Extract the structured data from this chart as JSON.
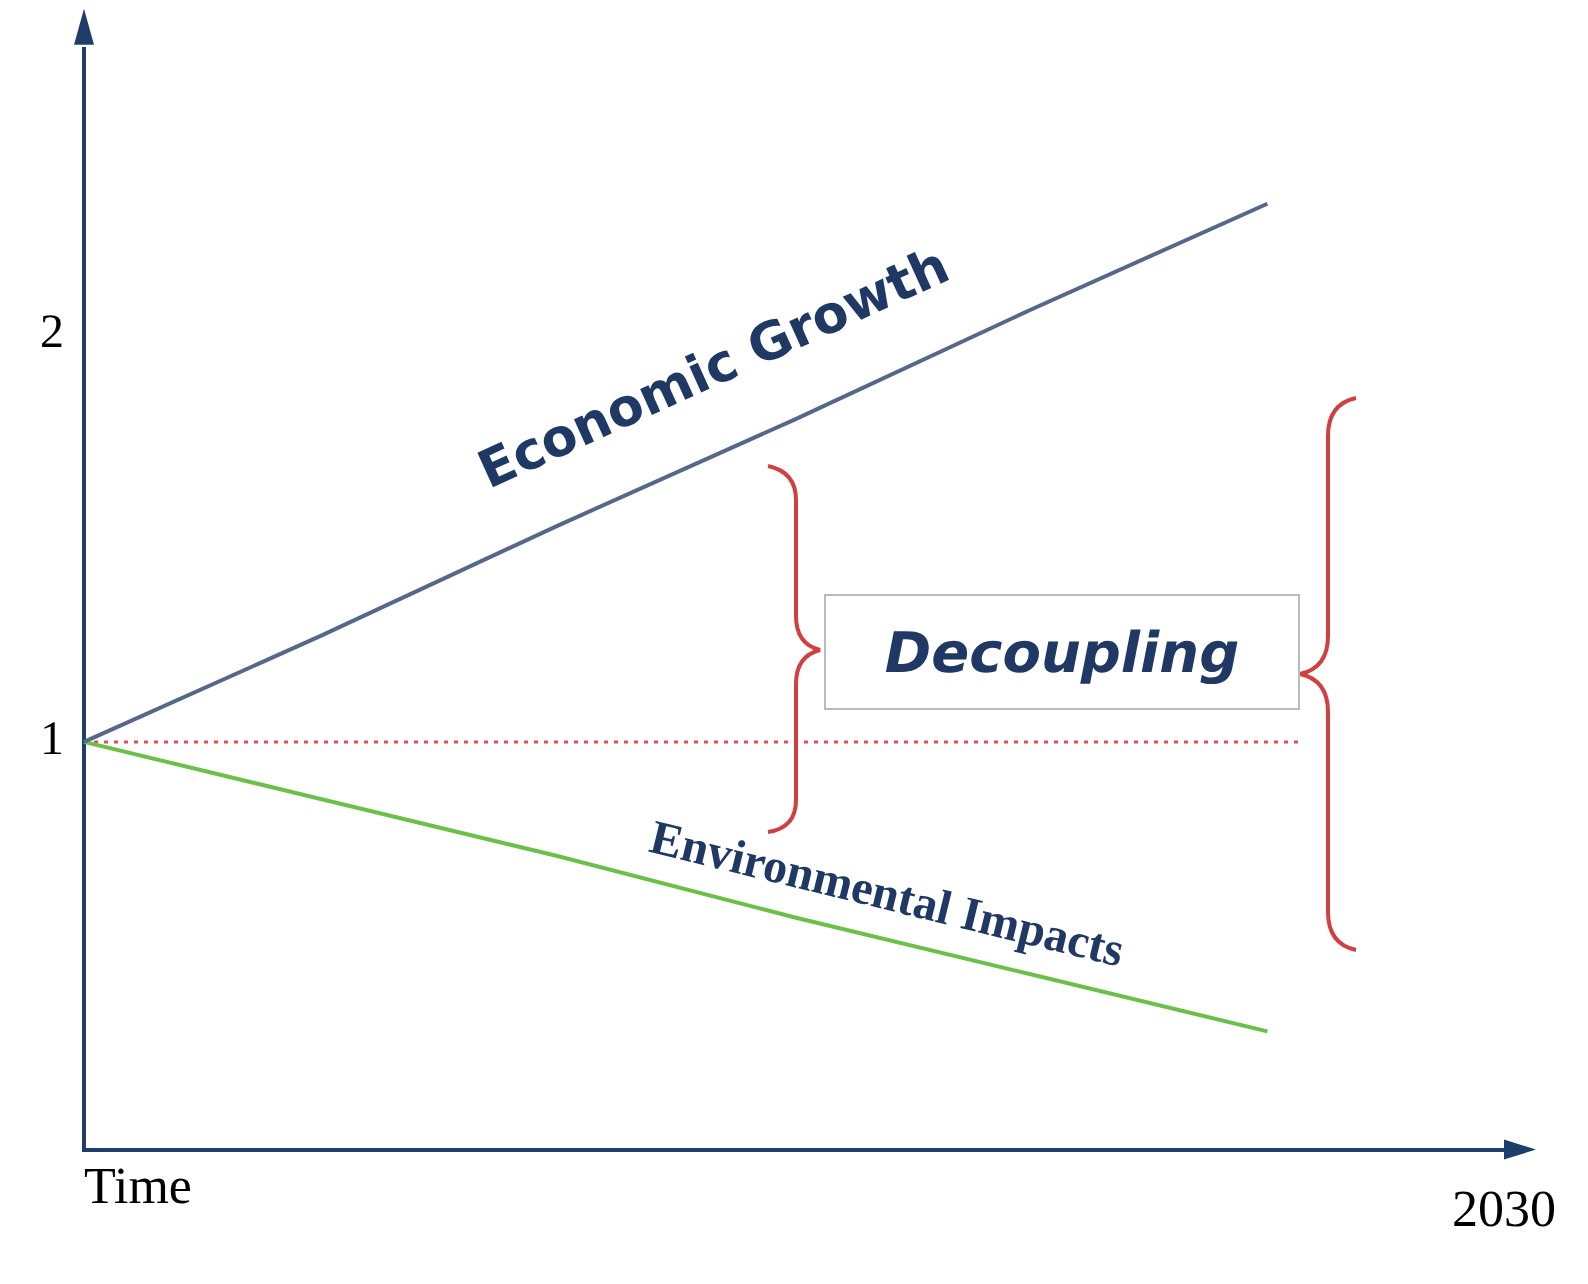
{
  "chart_data": {
    "type": "line",
    "xlabel": "Time",
    "categories": [
      null,
      null,
      null,
      null,
      null,
      null,
      "2030"
    ],
    "ylim": [
      0,
      2.7
    ],
    "yticks": [
      1,
      2
    ],
    "grid": false,
    "legend": false,
    "marker": "none",
    "line_style": "solid",
    "series": [
      {
        "name": "Economic Growth",
        "color": "#56688a",
        "values": [
          1,
          1.26,
          1.53,
          1.79,
          2.06,
          2.32,
          null
        ]
      },
      {
        "name": "Environmental Impacts",
        "color": "#6cc04a",
        "values": [
          1,
          0.86,
          0.72,
          0.57,
          0.43,
          0.29,
          null
        ]
      }
    ],
    "ref_lines": [
      {
        "axis": "y",
        "value": 1,
        "color": "#e05050",
        "line_style": "dotted"
      }
    ],
    "annotations": [
      "Decoupling"
    ]
  }
}
